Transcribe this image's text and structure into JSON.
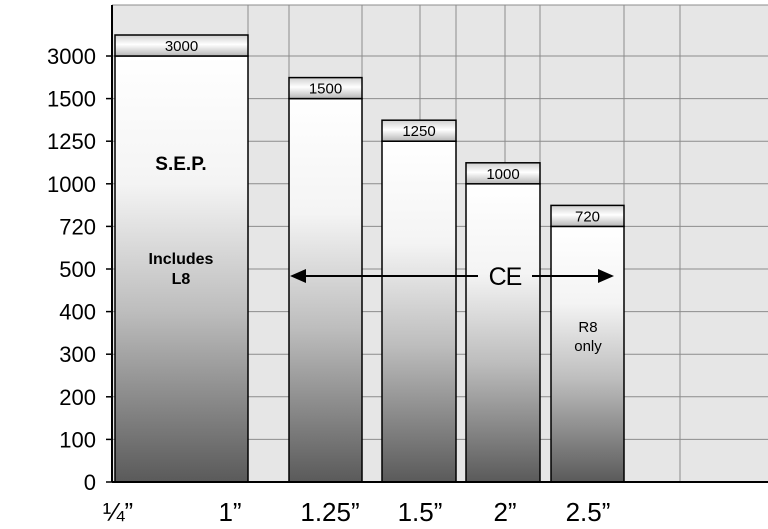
{
  "chart_data": {
    "type": "bar",
    "categories": [
      "¼”",
      "1”",
      "1.25”",
      "1.5”",
      "2”",
      "2.5”"
    ],
    "y_ticks": [
      "0",
      "100",
      "200",
      "300",
      "400",
      "500",
      "720",
      "1000",
      "1250",
      "1500",
      "3000"
    ],
    "bars": [
      {
        "value": 3000,
        "label": "3000"
      },
      {
        "value": 1500,
        "label": "1500"
      },
      {
        "value": 1250,
        "label": "1250"
      },
      {
        "value": 1000,
        "label": "1000"
      },
      {
        "value": 720,
        "label": "720"
      }
    ],
    "annotations": {
      "sep": "S.E.P.",
      "includes_line1": "Includes",
      "includes_line2": "L8",
      "ce_mark": "CE",
      "r8_line1": "R8",
      "r8_line2": "only"
    },
    "grid": true,
    "colors": {
      "plot_background": "#e6e6e6",
      "grid": "#8c8c8c",
      "bar_top": "#ffffff",
      "bar_bottom": "#5a5a5a",
      "axis": "#000000"
    }
  }
}
